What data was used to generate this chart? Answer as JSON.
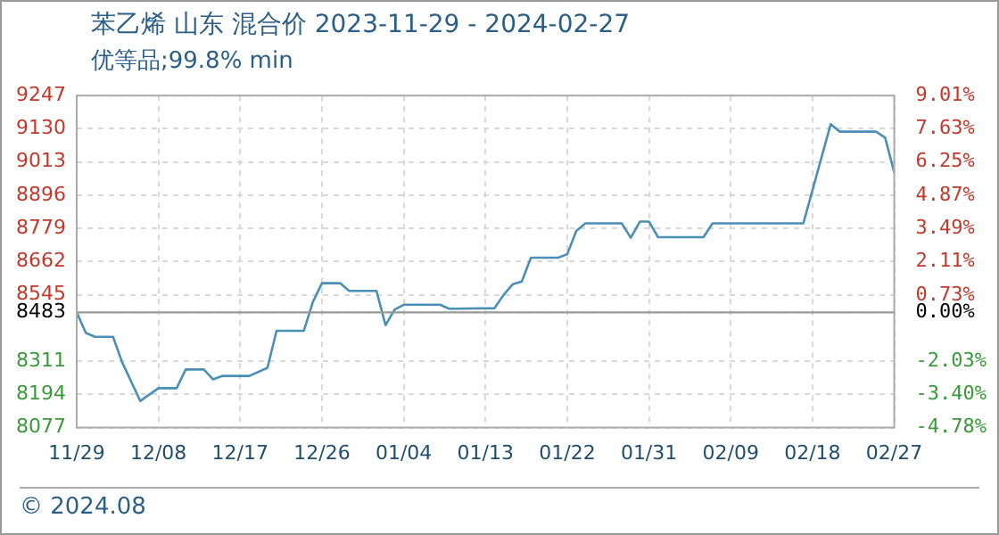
{
  "chart_data": {
    "type": "line",
    "title": "苯乙烯 山东 混合价 2023-11-29 - 2024-02-27",
    "subtitle": "优等品;99.8% min",
    "x": [
      "2023-11-29",
      "2023-11-30",
      "2023-12-01",
      "2023-12-03",
      "2023-12-04",
      "2023-12-06",
      "2023-12-08",
      "2023-12-10",
      "2023-12-11",
      "2023-12-13",
      "2023-12-14",
      "2023-12-15",
      "2023-12-18",
      "2023-12-20",
      "2023-12-21",
      "2023-12-24",
      "2023-12-25",
      "2023-12-26",
      "2023-12-28",
      "2023-12-29",
      "2024-01-01",
      "2024-01-02",
      "2024-01-03",
      "2024-01-04",
      "2024-01-08",
      "2024-01-09",
      "2024-01-14",
      "2024-01-15",
      "2024-01-16",
      "2024-01-17",
      "2024-01-18",
      "2024-01-21",
      "2024-01-22",
      "2024-01-23",
      "2024-01-24",
      "2024-01-28",
      "2024-01-29",
      "2024-01-30",
      "2024-01-31",
      "2024-02-01",
      "2024-02-06",
      "2024-02-07",
      "2024-02-17",
      "2024-02-20",
      "2024-02-21",
      "2024-02-25",
      "2024-02-26",
      "2024-02-27"
    ],
    "series": [
      {
        "color": "#4a8fb5",
        "values": [
          8483,
          8411,
          8397,
          8397,
          8308,
          8171,
          8216,
          8216,
          8282,
          8282,
          8247,
          8259,
          8259,
          8288,
          8418,
          8418,
          8520,
          8586,
          8586,
          8559,
          8559,
          8438,
          8493,
          8510,
          8510,
          8496,
          8498,
          8545,
          8582,
          8592,
          8676,
          8676,
          8688,
          8770,
          8797,
          8797,
          8746,
          8803,
          8803,
          8748,
          8748,
          8797,
          8797,
          9146,
          9120,
          9120,
          9099,
          8976
        ]
      }
    ],
    "xlim": [
      "2023-11-29",
      "2024-02-27"
    ],
    "xticks": [
      {
        "value": "2023-11-29",
        "label": "11/29"
      },
      {
        "value": "2023-12-08",
        "label": "12/08"
      },
      {
        "value": "2023-12-17",
        "label": "12/17"
      },
      {
        "value": "2023-12-26",
        "label": "12/26"
      },
      {
        "value": "2024-01-04",
        "label": "01/04"
      },
      {
        "value": "2024-01-13",
        "label": "01/13"
      },
      {
        "value": "2024-01-22",
        "label": "01/22"
      },
      {
        "value": "2024-01-31",
        "label": "01/31"
      },
      {
        "value": "2024-02-09",
        "label": "02/09"
      },
      {
        "value": "2024-02-18",
        "label": "02/18"
      },
      {
        "value": "2024-02-27",
        "label": "02/27"
      }
    ],
    "ylim": [
      8077,
      9247
    ],
    "yticks": [
      8077,
      8194,
      8311,
      8483,
      8545,
      8662,
      8779,
      8896,
      9013,
      9130,
      9247
    ],
    "y2lim": [
      -4.78,
      9.01
    ],
    "y2ticks": [
      {
        "value": -4.78,
        "label": "-4.78%"
      },
      {
        "value": -3.4,
        "label": "-3.40%"
      },
      {
        "value": -2.03,
        "label": "-2.03%"
      },
      {
        "value": 0,
        "label": "0.00%"
      },
      {
        "value": 0.73,
        "label": "0.73%"
      },
      {
        "value": 2.11,
        "label": "2.11%"
      },
      {
        "value": 3.49,
        "label": "3.49%"
      },
      {
        "value": 4.87,
        "label": "4.87%"
      },
      {
        "value": 6.25,
        "label": "6.25%"
      },
      {
        "value": 7.63,
        "label": "7.63%"
      },
      {
        "value": 9.01,
        "label": "9.01%"
      }
    ],
    "ref_lines": [
      {
        "axis": "y",
        "value": 8483,
        "color": "#999999"
      }
    ],
    "grid": true,
    "legend": false,
    "marker": "none",
    "line_style": "solid",
    "annotations": [
      "© 2024.08"
    ]
  }
}
